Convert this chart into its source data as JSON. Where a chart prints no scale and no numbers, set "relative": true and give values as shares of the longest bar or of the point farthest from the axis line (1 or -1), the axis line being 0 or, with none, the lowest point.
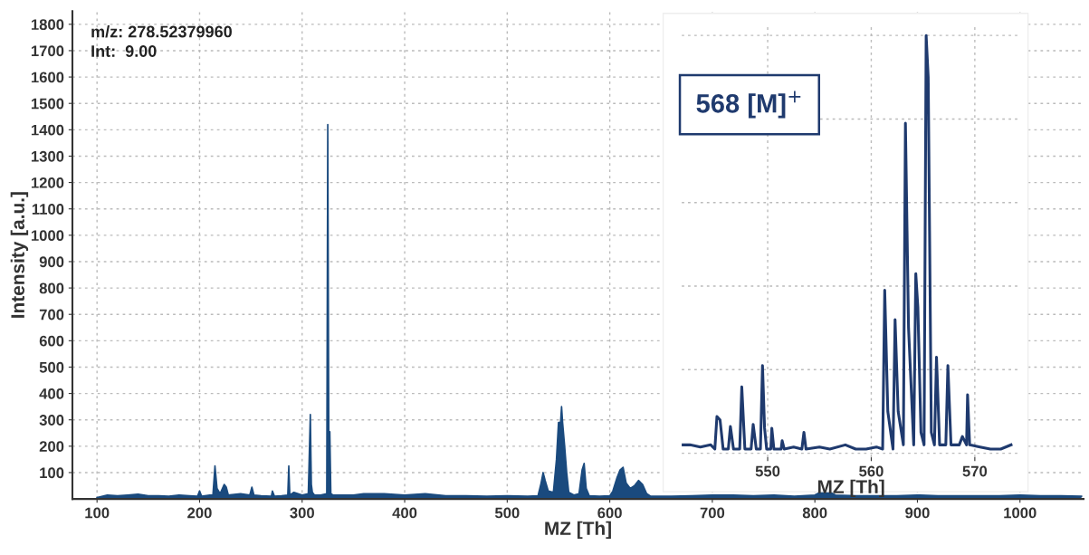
{
  "chart_data": [
    {
      "type": "area",
      "xlabel": "MZ [Th]",
      "ylabel": "Intensity [a.u.]",
      "color": "#1a4a7e",
      "x": [
        100,
        110,
        120,
        130,
        140,
        150,
        160,
        170,
        180,
        190,
        198,
        200,
        202,
        210,
        213,
        215,
        217,
        220,
        224,
        226,
        228,
        240,
        249,
        251,
        253,
        260,
        270,
        271,
        273,
        280,
        286,
        287,
        288,
        292,
        300,
        306,
        308,
        309,
        310,
        312,
        318,
        324,
        325,
        326,
        327,
        328,
        330,
        340,
        350,
        360,
        380,
        400,
        420,
        440,
        460,
        480,
        500,
        520,
        530,
        533,
        535,
        537,
        540,
        545,
        548,
        550,
        552,
        553,
        554,
        556,
        558,
        560,
        565,
        570,
        573,
        575,
        577,
        580,
        590,
        600,
        603,
        607,
        610,
        613,
        616,
        620,
        624,
        628,
        632,
        636,
        640,
        660,
        680,
        700,
        720,
        740,
        760,
        780,
        800,
        805,
        815,
        820,
        840,
        860,
        880,
        900,
        920,
        940,
        960,
        980,
        1000,
        1020,
        1040,
        1060
      ],
      "values": [
        5,
        15,
        12,
        15,
        18,
        12,
        12,
        10,
        15,
        12,
        10,
        30,
        10,
        15,
        15,
        125,
        40,
        20,
        55,
        45,
        15,
        20,
        15,
        45,
        15,
        12,
        10,
        30,
        10,
        12,
        15,
        125,
        15,
        25,
        15,
        20,
        320,
        55,
        25,
        15,
        15,
        20,
        1420,
        255,
        255,
        20,
        15,
        15,
        15,
        20,
        20,
        15,
        20,
        12,
        12,
        10,
        12,
        10,
        12,
        60,
        100,
        70,
        30,
        25,
        150,
        290,
        290,
        350,
        290,
        200,
        100,
        25,
        15,
        20,
        110,
        135,
        40,
        12,
        10,
        12,
        30,
        80,
        110,
        120,
        60,
        40,
        50,
        70,
        55,
        20,
        10,
        10,
        12,
        15,
        15,
        12,
        15,
        10,
        15,
        25,
        25,
        15,
        12,
        12,
        12,
        15,
        12,
        12,
        12,
        12,
        15,
        12,
        12,
        10
      ],
      "xlim": [
        76,
        1062
      ],
      "ylim": [
        0,
        1850
      ],
      "xticks": [
        100,
        200,
        300,
        400,
        500,
        600,
        700,
        800,
        900,
        1000
      ],
      "yticks": [
        100,
        200,
        300,
        400,
        500,
        600,
        700,
        800,
        900,
        1000,
        1100,
        1200,
        1300,
        1400,
        1500,
        1600,
        1700,
        1800
      ],
      "grid": true,
      "annotations": [
        "m/z: 278.52379960",
        "Int:  9.00"
      ]
    },
    {
      "type": "line",
      "xlabel": "MZ [Th]",
      "color": "#1f3a6e",
      "relative": true,
      "x": [
        541.8,
        542.5,
        543.5,
        544.5,
        544.9,
        545.1,
        545.4,
        545.7,
        546.2,
        546.4,
        546.7,
        547.3,
        547.5,
        547.8,
        548.4,
        548.6,
        548.9,
        549.3,
        549.5,
        549.7,
        549.9,
        550.3,
        550.4,
        550.6,
        551.3,
        551.4,
        551.6,
        552.5,
        553.3,
        553.5,
        553.7,
        555,
        556,
        557.5,
        558.5,
        559.5,
        560.5,
        561.1,
        561.3,
        561.6,
        562.1,
        562.3,
        562.6,
        563.1,
        563.3,
        563.6,
        564.1,
        564.3,
        564.5,
        564.8,
        565.1,
        565.3,
        565.5,
        565.8,
        566.1,
        566.3,
        566.6,
        567.2,
        567.4,
        567.7,
        568.5,
        568.8,
        569.2,
        569.3,
        569.5,
        570.5,
        571.5,
        572.5,
        573.5
      ],
      "values": [
        0.02,
        0.02,
        0.015,
        0.02,
        0.01,
        0.088,
        0.08,
        0.01,
        0.01,
        0.064,
        0.01,
        0.01,
        0.159,
        0.01,
        0.01,
        0.069,
        0.01,
        0.01,
        0.21,
        0.06,
        0.01,
        0.01,
        0.06,
        0.01,
        0.01,
        0.03,
        0.01,
        0.015,
        0.01,
        0.05,
        0.01,
        0.015,
        0.01,
        0.02,
        0.01,
        0.01,
        0.015,
        0.01,
        0.39,
        0.1,
        0.01,
        0.32,
        0.1,
        0.02,
        0.79,
        0.3,
        0.02,
        0.43,
        0.35,
        0.05,
        0.02,
        1.0,
        0.9,
        0.05,
        0.02,
        0.23,
        0.02,
        0.02,
        0.21,
        0.02,
        0.02,
        0.04,
        0.02,
        0.14,
        0.02,
        0.015,
        0.01,
        0.01,
        0.02
      ],
      "xlim": [
        541.7,
        574.4
      ],
      "xticks": [
        550,
        560,
        570
      ],
      "grid": true,
      "annotations": [
        "568 [M]$^{+}$"
      ]
    }
  ]
}
